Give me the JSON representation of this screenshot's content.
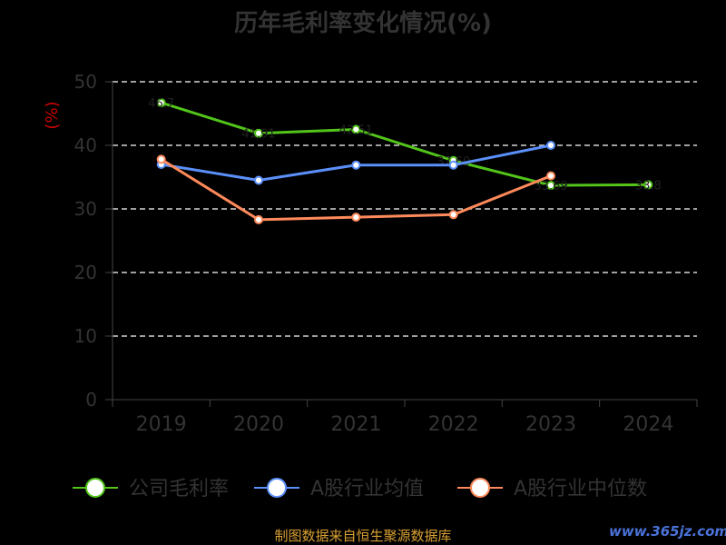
{
  "chart_data": {
    "type": "line",
    "title": "历年毛利率变化情况(%)",
    "ylabel": "(%)",
    "categories": [
      "2019",
      "2020",
      "2021",
      "2022",
      "2023",
      "2024"
    ],
    "ylim": [
      0,
      50
    ],
    "yticks": [
      "0",
      "10",
      "20",
      "30",
      "40",
      "50"
    ],
    "grid": true,
    "legend_position": "bottom",
    "series": [
      {
        "name": "公司毛利率",
        "color": "#52c41a",
        "values": [
          46.7,
          41.9,
          42.5,
          37.6,
          33.7,
          33.8
        ],
        "labels": [
          "46.7",
          "41.91",
          "42.51",
          "37.60",
          "33.69",
          "33.8"
        ]
      },
      {
        "name": "A股行业均值",
        "color": "#5b8ff9",
        "values": [
          37.0,
          34.5,
          36.9,
          36.9,
          40.0,
          null
        ]
      },
      {
        "name": "A股行业中位数",
        "color": "#ff8a5b",
        "values": [
          37.8,
          28.3,
          28.7,
          29.1,
          35.2,
          null
        ]
      }
    ]
  },
  "footer": {
    "source": "制图数据来自恒生聚源数据库",
    "watermark": "www.365jz.com"
  }
}
